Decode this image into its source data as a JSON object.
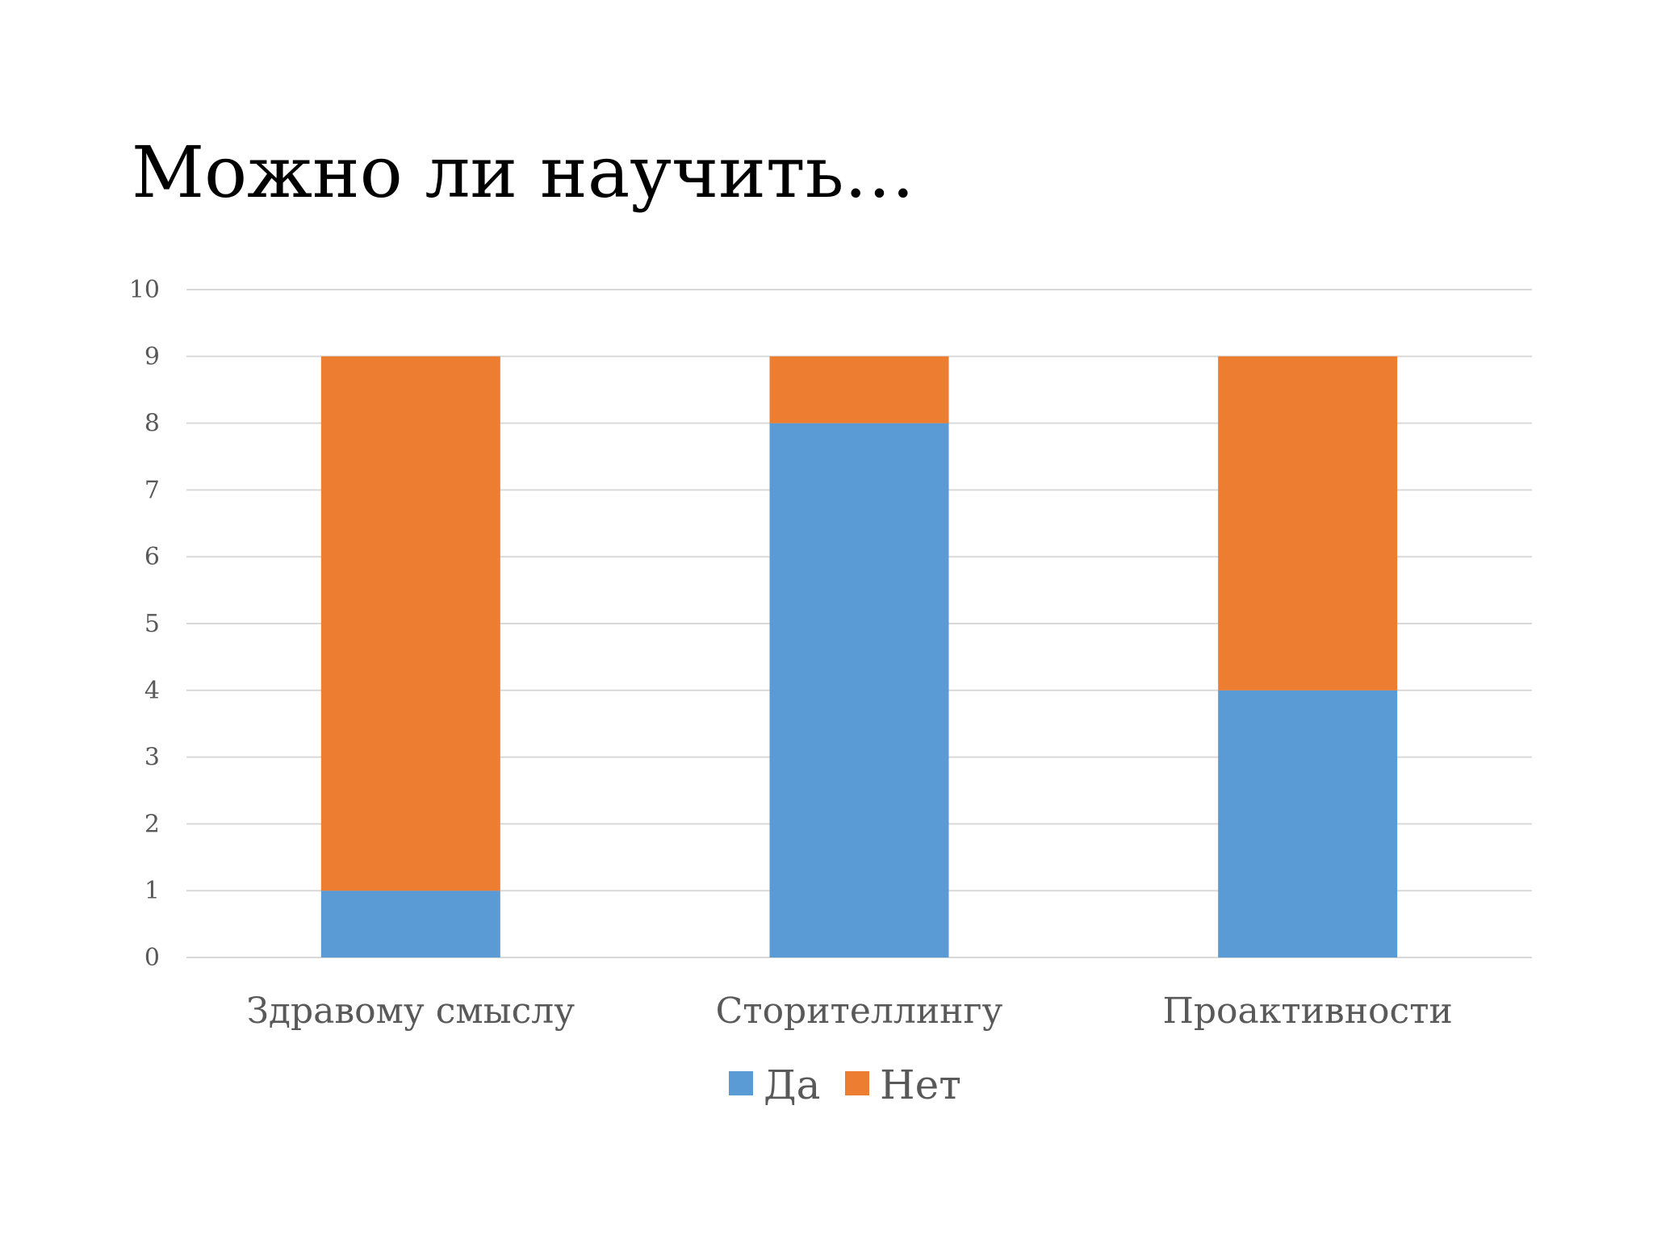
{
  "slide": {
    "title": "Можно ли научить…"
  },
  "chart_data": {
    "type": "bar",
    "stacked": true,
    "categories": [
      "Здравому смыслу",
      "Сторителлингу",
      "Проактивности"
    ],
    "series": [
      {
        "name": "Да",
        "values": [
          1,
          8,
          4
        ],
        "color": "#5B9BD5"
      },
      {
        "name": "Нет",
        "values": [
          8,
          1,
          5
        ],
        "color": "#ED7D31"
      }
    ],
    "ylim": [
      0,
      10
    ],
    "yticks": [
      0,
      1,
      2,
      3,
      4,
      5,
      6,
      7,
      8,
      9,
      10
    ],
    "grid": true,
    "legend_position": "bottom",
    "gridline_color": "#D9D9D9",
    "label_color": "#595959"
  }
}
